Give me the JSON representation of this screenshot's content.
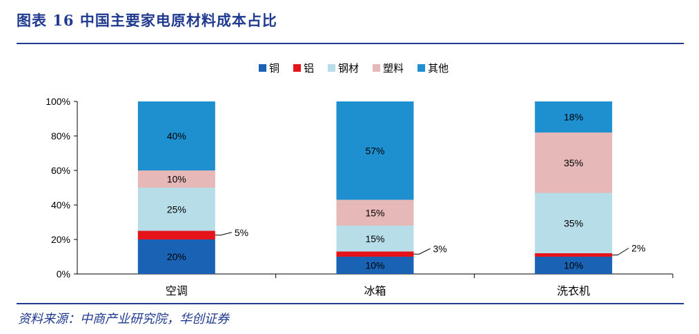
{
  "header": {
    "title": "图表 16    中国主要家电原材料成本占比"
  },
  "footer": {
    "source": "资料来源：中商产业研究院，华创证券"
  },
  "chart_data": {
    "type": "bar",
    "stacked": true,
    "categories": [
      "空调",
      "冰箱",
      "洗衣机"
    ],
    "series": [
      {
        "name": "铜",
        "values": [
          20,
          10,
          10
        ],
        "color": "#1a63b4"
      },
      {
        "name": "铝",
        "values": [
          5,
          3,
          2
        ],
        "color": "#e5141b"
      },
      {
        "name": "钢材",
        "values": [
          25,
          15,
          35
        ],
        "color": "#b6dde8"
      },
      {
        "name": "塑料",
        "values": [
          10,
          15,
          35
        ],
        "color": "#e6b8b8"
      },
      {
        "name": "其他",
        "values": [
          40,
          57,
          18
        ],
        "color": "#1e8fcf"
      }
    ],
    "value_labels": [
      [
        "20%",
        "5%",
        "25%",
        "10%",
        "40%"
      ],
      [
        "10%",
        "3%",
        "15%",
        "15%",
        "57%"
      ],
      [
        "10%",
        "2%",
        "35%",
        "35%",
        "18%"
      ]
    ],
    "ylim": [
      0,
      100
    ],
    "yticks": [
      "0%",
      "20%",
      "40%",
      "60%",
      "80%",
      "100%"
    ],
    "legend_position": "top-center",
    "grid": false
  }
}
